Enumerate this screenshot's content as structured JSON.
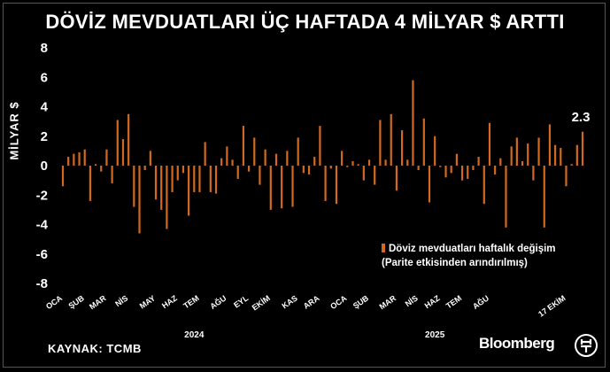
{
  "title": "DÖVİZ MEVDUATLARI ÜÇ HAFTADA 4 MİLYAR $ ARTTI",
  "source": "KAYNAK: TCMB",
  "brand": "Bloomberg",
  "logo": "HT",
  "legend": {
    "line1": "Döviz mevduatları haftalık değişim",
    "line2": "(Parite etkisinden arındırılmış)",
    "color": "#d2691e"
  },
  "annotation": "2.3",
  "chart_data": {
    "type": "bar",
    "ylabel": "MİLYAR $",
    "ylim": [
      -8,
      8
    ],
    "yticks": [
      8,
      6,
      4,
      2,
      0,
      -2,
      -4,
      -6,
      -8
    ],
    "bar_color": "#d2691e",
    "x_tick_labels": [
      "OCA",
      "ŞUB",
      "MAR",
      "NİS",
      "MAY",
      "HAZ",
      "TEM",
      "AĞU",
      "EYL",
      "EKİM",
      "KAS",
      "ARA",
      "OCA",
      "ŞUB",
      "MAR",
      "NİS",
      "HAZ",
      "TEM",
      "AĞU",
      "17 EKİM"
    ],
    "x_tick_positions": [
      0,
      4,
      8,
      12,
      17,
      21,
      25,
      30,
      34,
      38,
      43,
      47,
      52,
      56,
      61,
      65,
      69,
      73,
      78,
      92
    ],
    "years": [
      {
        "label": "2024",
        "position": 24
      },
      {
        "label": "2025",
        "position": 68
      }
    ],
    "values": [
      -1.4,
      0.6,
      0.8,
      0.9,
      1.1,
      -2.4,
      0.1,
      -0.4,
      1.1,
      -1.2,
      3.1,
      1.8,
      3.5,
      -2.8,
      -4.6,
      -0.3,
      1.0,
      -2.3,
      -3.0,
      -4.3,
      -1.8,
      -1.0,
      -0.5,
      -3.4,
      -1.8,
      -1.8,
      1.6,
      -1.8,
      -1.9,
      0.5,
      1.3,
      0.4,
      -0.9,
      2.7,
      -0.4,
      1.9,
      -1.3,
      1.1,
      -3.0,
      0.8,
      -2.9,
      1.0,
      -2.8,
      1.9,
      -0.5,
      -0.6,
      0.6,
      2.7,
      -2.4,
      -0.2,
      -2.6,
      1.0,
      -0.1,
      0.3,
      0.1,
      -1.0,
      0.4,
      -1.3,
      3.1,
      0.4,
      3.5,
      -1.7,
      2.4,
      0.4,
      5.8,
      -0.3,
      3.2,
      -2.5,
      2.0,
      -0.1,
      -0.8,
      -0.5,
      0.8,
      -1.0,
      -0.9,
      -0.3,
      0.6,
      -2.6,
      2.9,
      -0.6,
      0.5,
      -4.2,
      1.3,
      1.9,
      0.3,
      1.5,
      -1.0,
      1.9,
      -4.2,
      2.8,
      1.4,
      1.2,
      -1.4,
      0.1,
      1.4,
      2.3
    ]
  }
}
